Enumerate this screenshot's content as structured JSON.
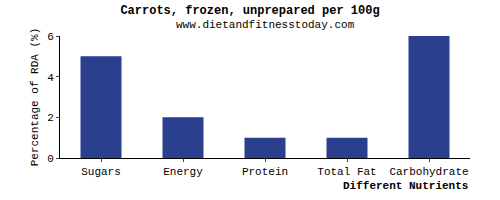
{
  "chart_data": {
    "type": "bar",
    "title": "Carrots, frozen, unprepared per 100g",
    "subtitle": "www.dietandfitnesstoday.com",
    "xlabel": "Different Nutrients",
    "ylabel": "Percentage of RDA (%)",
    "categories": [
      "Sugars",
      "Energy",
      "Protein",
      "Total Fat",
      "Carbohydrate"
    ],
    "values": [
      5,
      2,
      1,
      1,
      6
    ],
    "color": "#2b3f8f",
    "ylim": [
      0,
      6
    ],
    "yticks": [
      0,
      2,
      4,
      6
    ],
    "grid": false
  }
}
